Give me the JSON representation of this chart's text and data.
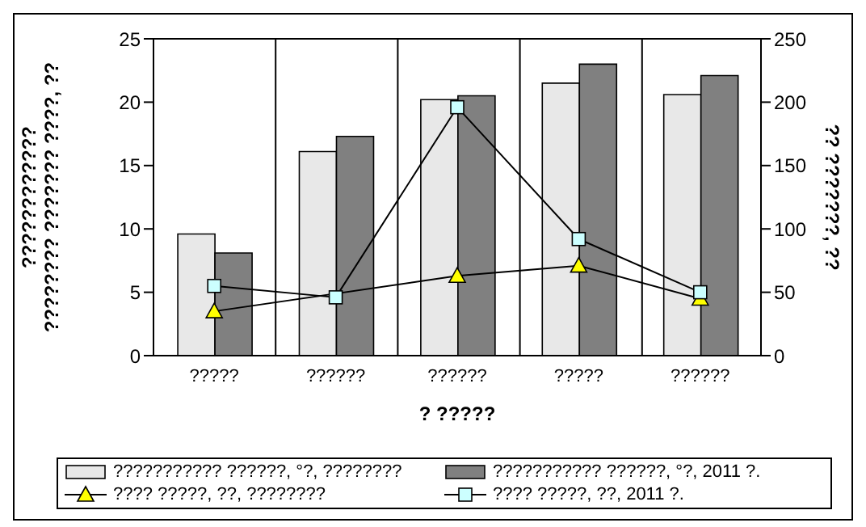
{
  "chart_data": {
    "type": "bar",
    "xlabel": "? ?????",
    "ylabel": "????????????\n???????? ??????? ????, ??",
    "y2label": "?? ???????, ??",
    "categories": [
      "?????",
      "??????",
      "??????",
      "?????",
      "??????"
    ],
    "series": [
      {
        "name": "??????????? ??????, °?, ????????",
        "color": "#e8e8e8",
        "values": [
          9.6,
          16.1,
          20.2,
          21.5,
          20.6
        ]
      },
      {
        "name": "??????????? ??????, °?, 2011 ?.",
        "color": "#808080",
        "values": [
          8.1,
          17.3,
          20.5,
          23.0,
          22.1
        ]
      },
      {
        "name": "???? ?????, ??, ????????",
        "type": "line",
        "axis": "y2",
        "marker": "triangle",
        "color": "#ffff00",
        "values": [
          35,
          null,
          63,
          71,
          45
        ]
      },
      {
        "name": "???? ?????, ??, 2011 ?.",
        "type": "line",
        "axis": "y2",
        "marker": "square",
        "color": "#ccffff",
        "values": [
          55,
          46,
          196,
          92,
          50
        ]
      }
    ],
    "ylim": [
      0,
      25
    ],
    "yticks": [
      0,
      5,
      10,
      15,
      20,
      25
    ],
    "y2lim": [
      0,
      250
    ],
    "y2ticks": [
      0,
      50,
      100,
      150,
      200,
      250
    ],
    "grid": true,
    "legend": "bottom"
  }
}
